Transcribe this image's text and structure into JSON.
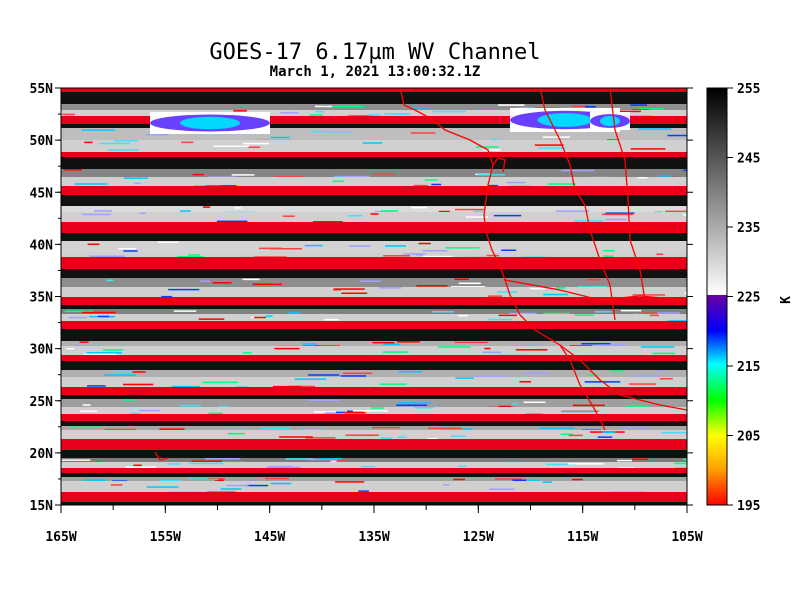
{
  "title": "GOES-17  6.17µm WV Channel",
  "subtitle": "March  1,  2021 13:00:32.1Z",
  "map": {
    "lat_labels": [
      "55N",
      "50N",
      "45N",
      "40N",
      "35N",
      "30N",
      "25N",
      "20N",
      "15N"
    ],
    "lat_values": [
      55,
      50,
      45,
      40,
      35,
      30,
      25,
      20,
      15
    ],
    "lon_labels": [
      "165W",
      "155W",
      "145W",
      "135W",
      "125W",
      "115W",
      "105W"
    ],
    "lon_values": [
      -165,
      -155,
      -145,
      -135,
      -125,
      -115,
      -105
    ],
    "lat_range": [
      15,
      55
    ],
    "lon_range": [
      -165,
      -105
    ],
    "coastline_color": "#ff0000"
  },
  "colorbar": {
    "unit": "K",
    "tick_labels": [
      "255",
      "245",
      "235",
      "225",
      "215",
      "205",
      "195"
    ],
    "tick_values": [
      255,
      245,
      235,
      225,
      215,
      205,
      195
    ],
    "range": [
      195,
      255
    ],
    "gray_stops": [
      "#ffffff",
      "#000000"
    ],
    "color_stops": [
      "#ff0000",
      "#ffa000",
      "#ffff00",
      "#00ff00",
      "#00ffff",
      "#0000ff",
      "#7000a0"
    ]
  }
}
